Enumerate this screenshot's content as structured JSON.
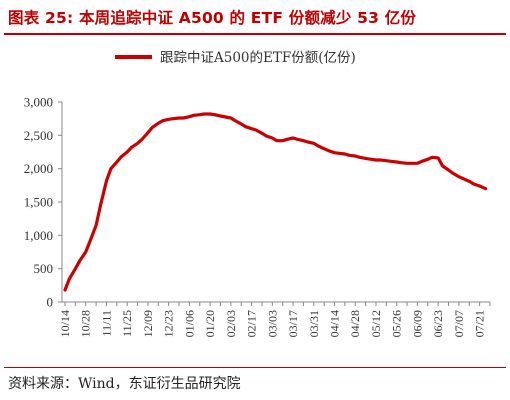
{
  "figure": {
    "title": "图表 25: 本周追踪中证 A500 的 ETF 份额减少 53 亿份",
    "source": "资料来源：Wind，东证衍生品研究院"
  },
  "colors": {
    "accent": "#c00000",
    "series": "#cc0000",
    "axis": "#888888"
  },
  "chart_data": {
    "type": "line",
    "title": "",
    "xlabel": "",
    "ylabel": "",
    "ylim": [
      0,
      3000
    ],
    "yticks": [
      0,
      500,
      1000,
      1500,
      2000,
      2500,
      3000
    ],
    "ytick_labels": [
      "0",
      "500",
      "1,000",
      "1,500",
      "2,000",
      "2,500",
      "3,000"
    ],
    "xtick_labels": [
      "10/14",
      "10/28",
      "11/11",
      "11/25",
      "12/09",
      "12/23",
      "01/06",
      "01/20",
      "02/03",
      "02/17",
      "03/03",
      "03/17",
      "03/31",
      "04/14",
      "04/28",
      "05/12",
      "05/26",
      "06/09",
      "06/23",
      "07/07",
      "07/21"
    ],
    "grid": false,
    "legend_position": "top-center",
    "series": [
      {
        "name": "跟踪中证A500的ETF份额(亿份)",
        "x": [
          "10/14",
          "10/17",
          "10/21",
          "10/24",
          "10/28",
          "10/31",
          "11/04",
          "11/07",
          "11/11",
          "11/14",
          "11/18",
          "11/21",
          "11/25",
          "11/28",
          "12/02",
          "12/05",
          "12/09",
          "12/12",
          "12/16",
          "12/19",
          "12/23",
          "12/26",
          "12/30",
          "01/02",
          "01/06",
          "01/09",
          "01/13",
          "01/16",
          "01/20",
          "01/23",
          "01/27",
          "02/03",
          "02/06",
          "02/10",
          "02/13",
          "02/17",
          "02/20",
          "02/24",
          "02/27",
          "03/03",
          "03/06",
          "03/10",
          "03/13",
          "03/17",
          "03/20",
          "03/24",
          "03/27",
          "03/31",
          "04/03",
          "04/07",
          "04/10",
          "04/14",
          "04/17",
          "04/21",
          "04/24",
          "04/28",
          "05/01",
          "05/06",
          "05/09",
          "05/12",
          "05/15",
          "05/19",
          "05/22",
          "05/26",
          "05/29",
          "06/02",
          "06/05",
          "06/09",
          "06/12",
          "06/16",
          "06/19",
          "06/23",
          "06/26",
          "06/30",
          "07/03",
          "07/07",
          "07/10",
          "07/14",
          "07/17",
          "07/21",
          "07/25"
        ],
        "y": [
          180,
          350,
          500,
          620,
          750,
          920,
          1150,
          1450,
          1820,
          2000,
          2100,
          2180,
          2250,
          2320,
          2380,
          2440,
          2540,
          2620,
          2680,
          2720,
          2740,
          2750,
          2760,
          2760,
          2780,
          2800,
          2810,
          2820,
          2820,
          2810,
          2790,
          2760,
          2720,
          2670,
          2630,
          2600,
          2580,
          2530,
          2490,
          2460,
          2420,
          2420,
          2440,
          2460,
          2440,
          2420,
          2400,
          2380,
          2340,
          2300,
          2270,
          2240,
          2230,
          2220,
          2200,
          2190,
          2170,
          2150,
          2140,
          2130,
          2130,
          2120,
          2110,
          2100,
          2090,
          2080,
          2080,
          2080,
          2110,
          2140,
          2170,
          2160,
          2040,
          1980,
          1930,
          1880,
          1850,
          1810,
          1770,
          1740,
          1700
        ]
      }
    ]
  }
}
